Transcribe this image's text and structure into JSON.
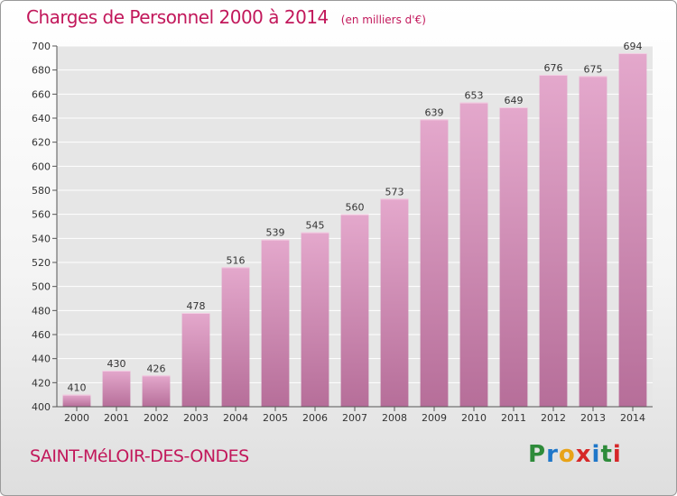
{
  "header": {
    "title": "Charges de Personnel 2000 à 2014",
    "subtitle": "(en milliers d'€)"
  },
  "footer": {
    "city": "SAINT-MéLOIR-DES-ONDES",
    "logo_letters": [
      "P",
      "r",
      "o",
      "x",
      "i",
      "t",
      "i"
    ],
    "logo_colors": [
      "#2e8b3a",
      "#1f77c9",
      "#e8a317",
      "#d62728",
      "#1f77c9",
      "#2e8b3a",
      "#d62728"
    ]
  },
  "colors": {
    "bar_light": "#e4a8cc",
    "bar_dark": "#b66e99",
    "title": "#c2185b",
    "grid": "#ffffff"
  },
  "chart_data": {
    "type": "bar",
    "title": "Charges de Personnel 2000 à 2014",
    "subtitle": "(en milliers d'€)",
    "xlabel": "",
    "ylabel": "",
    "categories": [
      "2000",
      "2001",
      "2002",
      "2003",
      "2004",
      "2005",
      "2006",
      "2007",
      "2008",
      "2009",
      "2010",
      "2011",
      "2012",
      "2013",
      "2014"
    ],
    "values": [
      410,
      430,
      426,
      478,
      516,
      539,
      545,
      560,
      573,
      639,
      653,
      649,
      676,
      675,
      694
    ],
    "ylim": [
      400,
      700
    ],
    "yticks": [
      400,
      420,
      440,
      460,
      480,
      500,
      520,
      540,
      560,
      580,
      600,
      620,
      640,
      660,
      680,
      700
    ],
    "grid": true
  }
}
